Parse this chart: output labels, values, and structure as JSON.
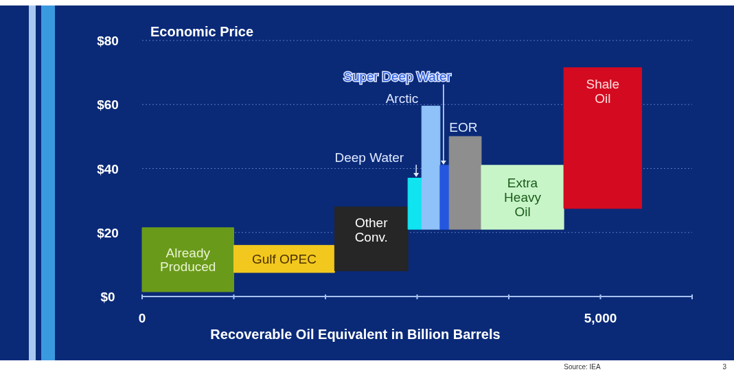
{
  "chart_data": {
    "type": "area",
    "ylabel": "Economic Price",
    "xlabel": "Recoverable Oil Equivalent in Billion Barrels",
    "xlim": [
      0,
      6000
    ],
    "xticks": [
      0,
      {
        "value": 1000,
        "label": null
      },
      {
        "value": 2000,
        "label": null
      },
      {
        "value": 3000,
        "label": null
      },
      {
        "value": 4000,
        "label": null
      },
      {
        "value": 5000,
        "label": "5,000"
      },
      {
        "value": 6000,
        "label": null
      }
    ],
    "ylim": [
      0,
      80
    ],
    "yticks": [
      {
        "value": 0,
        "label": "$0"
      },
      {
        "value": 20,
        "label": "$20"
      },
      {
        "value": 40,
        "label": "$40"
      },
      {
        "value": 60,
        "label": "$60"
      },
      {
        "value": 80,
        "label": "$80"
      }
    ],
    "grid": "y",
    "series": [
      {
        "name": "Already Produced",
        "color": "#6a9a1a",
        "x": [
          0,
          0,
          1000,
          1000,
          0
        ],
        "values": [
          1.5,
          21.5,
          21.5,
          1.5,
          1.5
        ]
      },
      {
        "name": "Gulf OPEC",
        "color": "#f2c81e",
        "x": [
          1000,
          1000,
          2100,
          2100,
          1000
        ],
        "values": [
          7.5,
          16,
          16,
          7.5,
          7.5
        ]
      },
      {
        "name": "Other Conv.",
        "color": "#262626",
        "x": [
          2100,
          2100,
          2900,
          2900,
          2100
        ],
        "values": [
          8,
          28,
          28,
          8,
          8
        ]
      },
      {
        "name": "Deep Water",
        "color": "#10e4f0",
        "x": [
          2900,
          2900,
          3050,
          3050,
          2900
        ],
        "values": [
          21,
          37,
          37,
          21,
          21
        ]
      },
      {
        "name": "Arctic",
        "color": "#8ec2f8",
        "x": [
          3050,
          3050,
          3250,
          3250,
          3050
        ],
        "values": [
          21,
          59.5,
          59.5,
          21,
          21
        ]
      },
      {
        "name": "Super Deep Water",
        "color": "#2456e0",
        "x": [
          3250,
          3250,
          3350,
          3350,
          3250
        ],
        "values": [
          21,
          41,
          41,
          21,
          21
        ]
      },
      {
        "name": "EOR",
        "color": "#8e8e8e",
        "x": [
          3350,
          3350,
          3700,
          3700,
          3350
        ],
        "values": [
          21,
          50,
          50,
          21,
          21
        ]
      },
      {
        "name": "Extra Heavy Oil",
        "color": "#c8f5c8",
        "x": [
          3700,
          3700,
          4600,
          4600,
          3700
        ],
        "values": [
          21,
          41,
          41,
          21,
          21
        ]
      },
      {
        "name": "Shale Oil",
        "color": "#d40a20",
        "x": [
          4600,
          4600,
          5450,
          5450,
          4600
        ],
        "values": [
          27.5,
          71.5,
          71.5,
          27.5,
          27.5
        ]
      }
    ],
    "annotations": [
      "Source: IEA",
      "3"
    ]
  }
}
